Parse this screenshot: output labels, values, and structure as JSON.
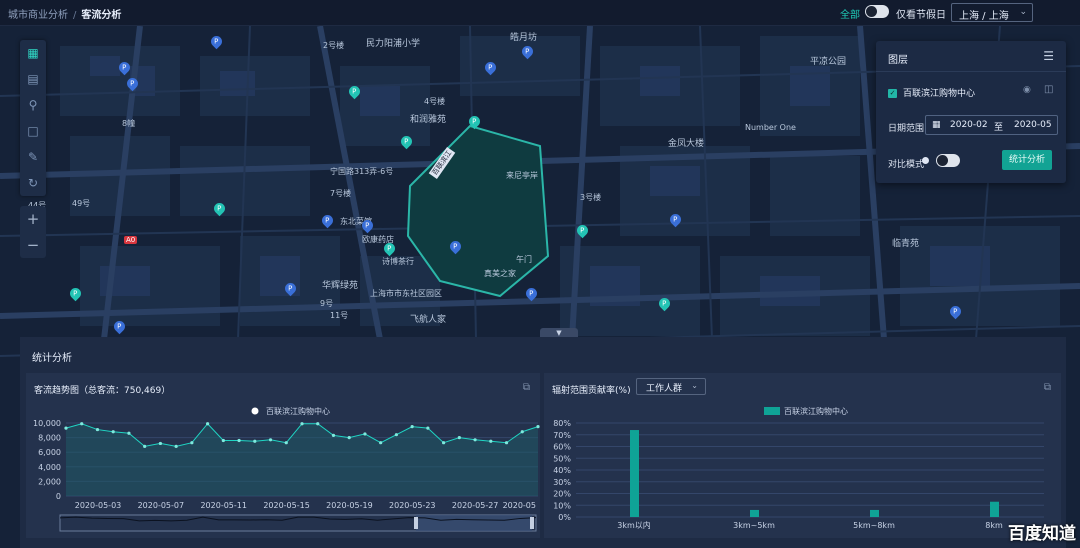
{
  "breadcrumb": {
    "parent": "城市商业分析",
    "separator": "/",
    "current": "客流分析"
  },
  "topbar": {
    "all_label": "全部",
    "holiday_label": "仅看节假日",
    "city_value": "上海 / 上海"
  },
  "map": {
    "labels": [
      "民力阳浦小学",
      "皓月坊",
      "平凉公园",
      "和润雅苑",
      "金凤大楼",
      "Number One",
      "宁国路313弄-6号",
      "东北菜馆",
      "欧康药店",
      "诗博茶行",
      "华辉绿苑",
      "上海市市东社区园区",
      "飞航人家",
      "午门",
      "真美之家",
      "来尼亭岸",
      "临青苑",
      "2号楼",
      "3号楼",
      "4号楼",
      "7号楼",
      "8幢",
      "9号",
      "11号",
      "49号",
      "44号",
      "A0"
    ],
    "mall_label": "百联滨江"
  },
  "layer_panel": {
    "title": "图层",
    "layer_name": "百联滨江购物中心",
    "date_label": "日期范围",
    "date_from": "2020-02",
    "date_to_sep": "至",
    "date_to": "2020-05",
    "compare_label": "对比模式",
    "analyze_button": "统计分析"
  },
  "stats": {
    "title": "统计分析",
    "trend": {
      "title": "客流趋势图（总客流：750,469）"
    },
    "radiation": {
      "title": "辐射范围贡献率(%)",
      "select_value": "工作人群"
    }
  },
  "watermark": "百度知道",
  "chart_data": [
    {
      "type": "line",
      "title": "客流趋势图（总客流：750,469）",
      "legend": [
        "百联滨江购物中心"
      ],
      "legend_position": "top-center",
      "x_ticks": [
        "2020-05-03",
        "2020-05-07",
        "2020-05-11",
        "2020-05-15",
        "2020-05-19",
        "2020-05-23",
        "2020-05-27",
        "2020-05"
      ],
      "ylim": [
        0,
        10000
      ],
      "y_ticks": [
        "0",
        "2,000",
        "4,000",
        "6,000",
        "8,000",
        "10,000"
      ],
      "grid": true,
      "series": [
        {
          "name": "百联滨江购物中心",
          "values": [
            9300,
            9900,
            9100,
            8800,
            8600,
            6800,
            7200,
            6800,
            7300,
            9900,
            7600,
            7600,
            7500,
            7700,
            7300,
            9900,
            9900,
            8300,
            8000,
            8500,
            7300,
            8400,
            9500,
            9300,
            7300,
            8000,
            7700,
            7500,
            7300,
            8800,
            9500
          ]
        }
      ]
    },
    {
      "type": "bar",
      "title": "辐射范围贡献率(%)",
      "legend": [
        "百联滨江购物中心"
      ],
      "legend_position": "top-center",
      "categories": [
        "3km以内",
        "3km~5km",
        "5km~8km",
        "8km"
      ],
      "ylim": [
        0,
        80
      ],
      "y_ticks": [
        "0%",
        "10%",
        "20%",
        "30%",
        "40%",
        "50%",
        "60%",
        "70%",
        "80%"
      ],
      "grid": true,
      "series": [
        {
          "name": "百联滨江购物中心",
          "values": [
            74,
            6,
            6,
            13
          ]
        }
      ]
    }
  ],
  "colors": {
    "accent": "#1ecbb7",
    "bar": "#0fa396",
    "line": "#1fd6c4",
    "panel": "#1c2a44"
  }
}
